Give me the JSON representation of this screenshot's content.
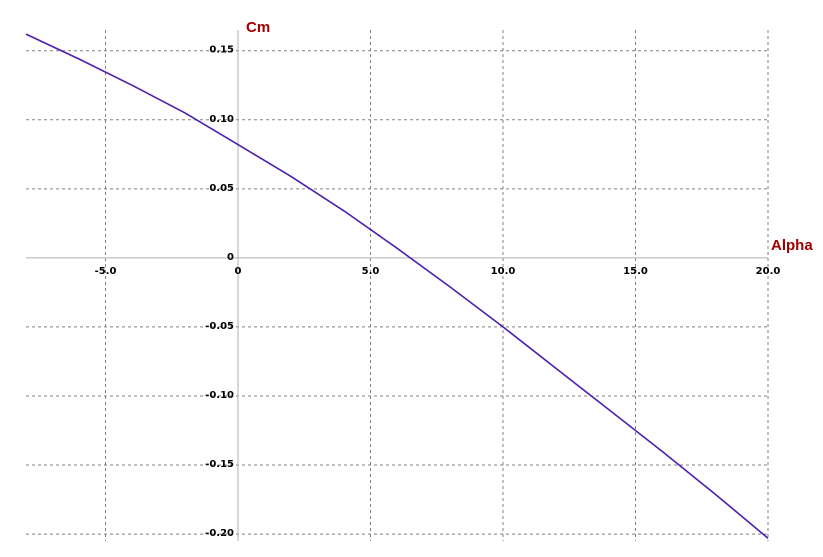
{
  "chart_data": {
    "type": "line",
    "xlabel": "Alpha",
    "ylabel": "Cm",
    "xlim": [
      -8,
      20
    ],
    "ylim": [
      -0.205,
      0.165
    ],
    "grid": true,
    "x_ticks": [
      -5,
      0,
      5,
      10,
      15,
      20
    ],
    "x_tick_labels": [
      "-5.0",
      "0",
      "5.0",
      "10.0",
      "15.0",
      "20.0"
    ],
    "y_ticks": [
      0.15,
      0.1,
      0.05,
      0,
      -0.05,
      -0.1,
      -0.15,
      -0.2
    ],
    "y_tick_labels": [
      "0.15",
      "0.10",
      "0.05",
      "0",
      "-0.05",
      "-0.10",
      "-0.15",
      "-0.20"
    ],
    "colors": {
      "line": "#4b1fb0",
      "grid": "#808080",
      "axis_title": "#a00000"
    },
    "series": [
      {
        "x": [
          -8,
          -6,
          -4,
          -2,
          0,
          2,
          4,
          6,
          8,
          10,
          12,
          14,
          16,
          18,
          20
        ],
        "y": [
          0.162,
          0.144,
          0.125,
          0.105,
          0.082,
          0.059,
          0.034,
          0.007,
          -0.021,
          -0.05,
          -0.08,
          -0.11,
          -0.14,
          -0.171,
          -0.203
        ]
      }
    ]
  }
}
